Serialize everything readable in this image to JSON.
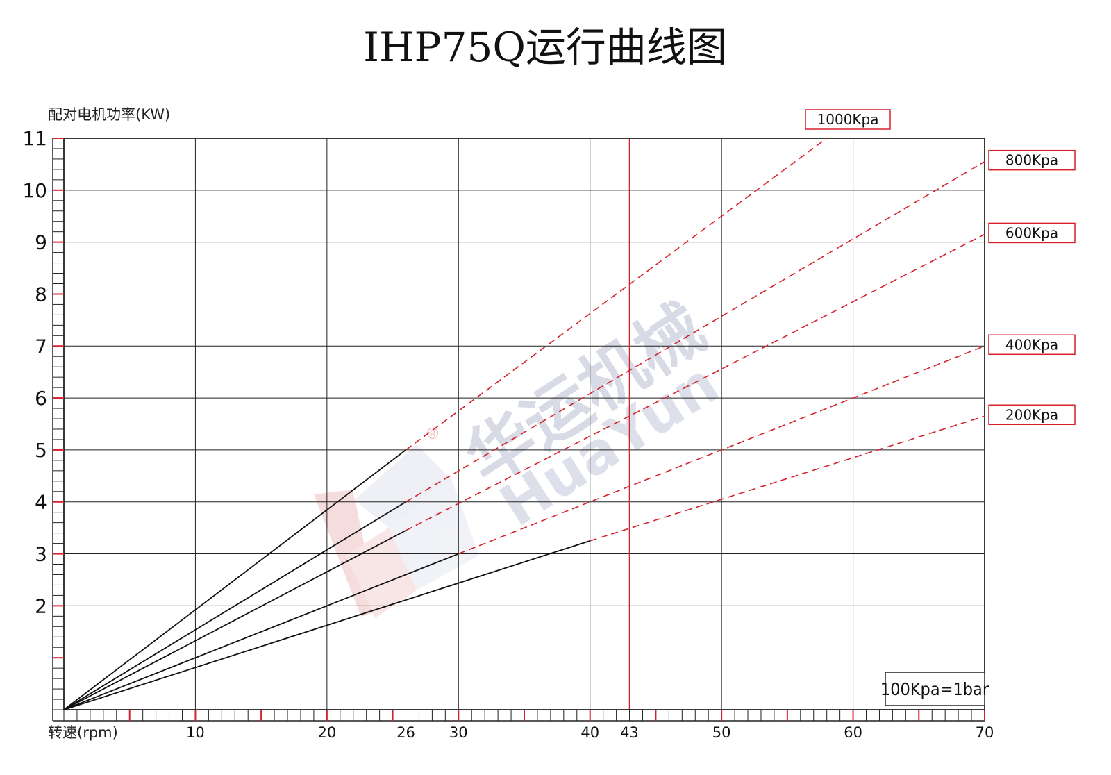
{
  "page_title": "IHP75Q运行曲线图",
  "watermark": {
    "chinese": "华运机械",
    "english": "HuaYun",
    "mark": "®"
  },
  "note": "100Kpa=1bar",
  "colors": {
    "grid": "#222222",
    "accent": "#d6202a",
    "curve": "#111111"
  },
  "chart_data": {
    "type": "line",
    "title": "IHP75Q运行曲线图",
    "xlabel": "转速(rpm)",
    "ylabel": "配对电机功率(KW)",
    "xlim": [
      0,
      70
    ],
    "ylim": [
      0,
      11
    ],
    "x_ticks": [
      10,
      20,
      26,
      30,
      40,
      43,
      50,
      60,
      70
    ],
    "y_ticks": [
      2,
      3,
      4,
      5,
      6,
      7,
      8,
      9,
      10,
      11
    ],
    "highlight_x": 43,
    "grid": true,
    "series": [
      {
        "name": "1000Kpa",
        "solid": [
          [
            0,
            0
          ],
          [
            26,
            5.0
          ]
        ],
        "dashed": [
          [
            26,
            5.0
          ],
          [
            58,
            11.0
          ]
        ]
      },
      {
        "name": "800Kpa",
        "solid": [
          [
            0,
            0
          ],
          [
            26,
            4.0
          ]
        ],
        "dashed": [
          [
            26,
            4.0
          ],
          [
            70,
            10.55
          ]
        ]
      },
      {
        "name": "600Kpa",
        "solid": [
          [
            0,
            0
          ],
          [
            26,
            3.45
          ]
        ],
        "dashed": [
          [
            26,
            3.45
          ],
          [
            70,
            9.15
          ]
        ]
      },
      {
        "name": "400Kpa",
        "solid": [
          [
            0,
            0
          ],
          [
            30,
            3.0
          ]
        ],
        "dashed": [
          [
            30,
            3.0
          ],
          [
            70,
            7.0
          ]
        ]
      },
      {
        "name": "200Kpa",
        "solid": [
          [
            0,
            0
          ],
          [
            40,
            3.25
          ]
        ],
        "dashed": [
          [
            40,
            3.25
          ],
          [
            70,
            5.65
          ]
        ]
      }
    ]
  }
}
